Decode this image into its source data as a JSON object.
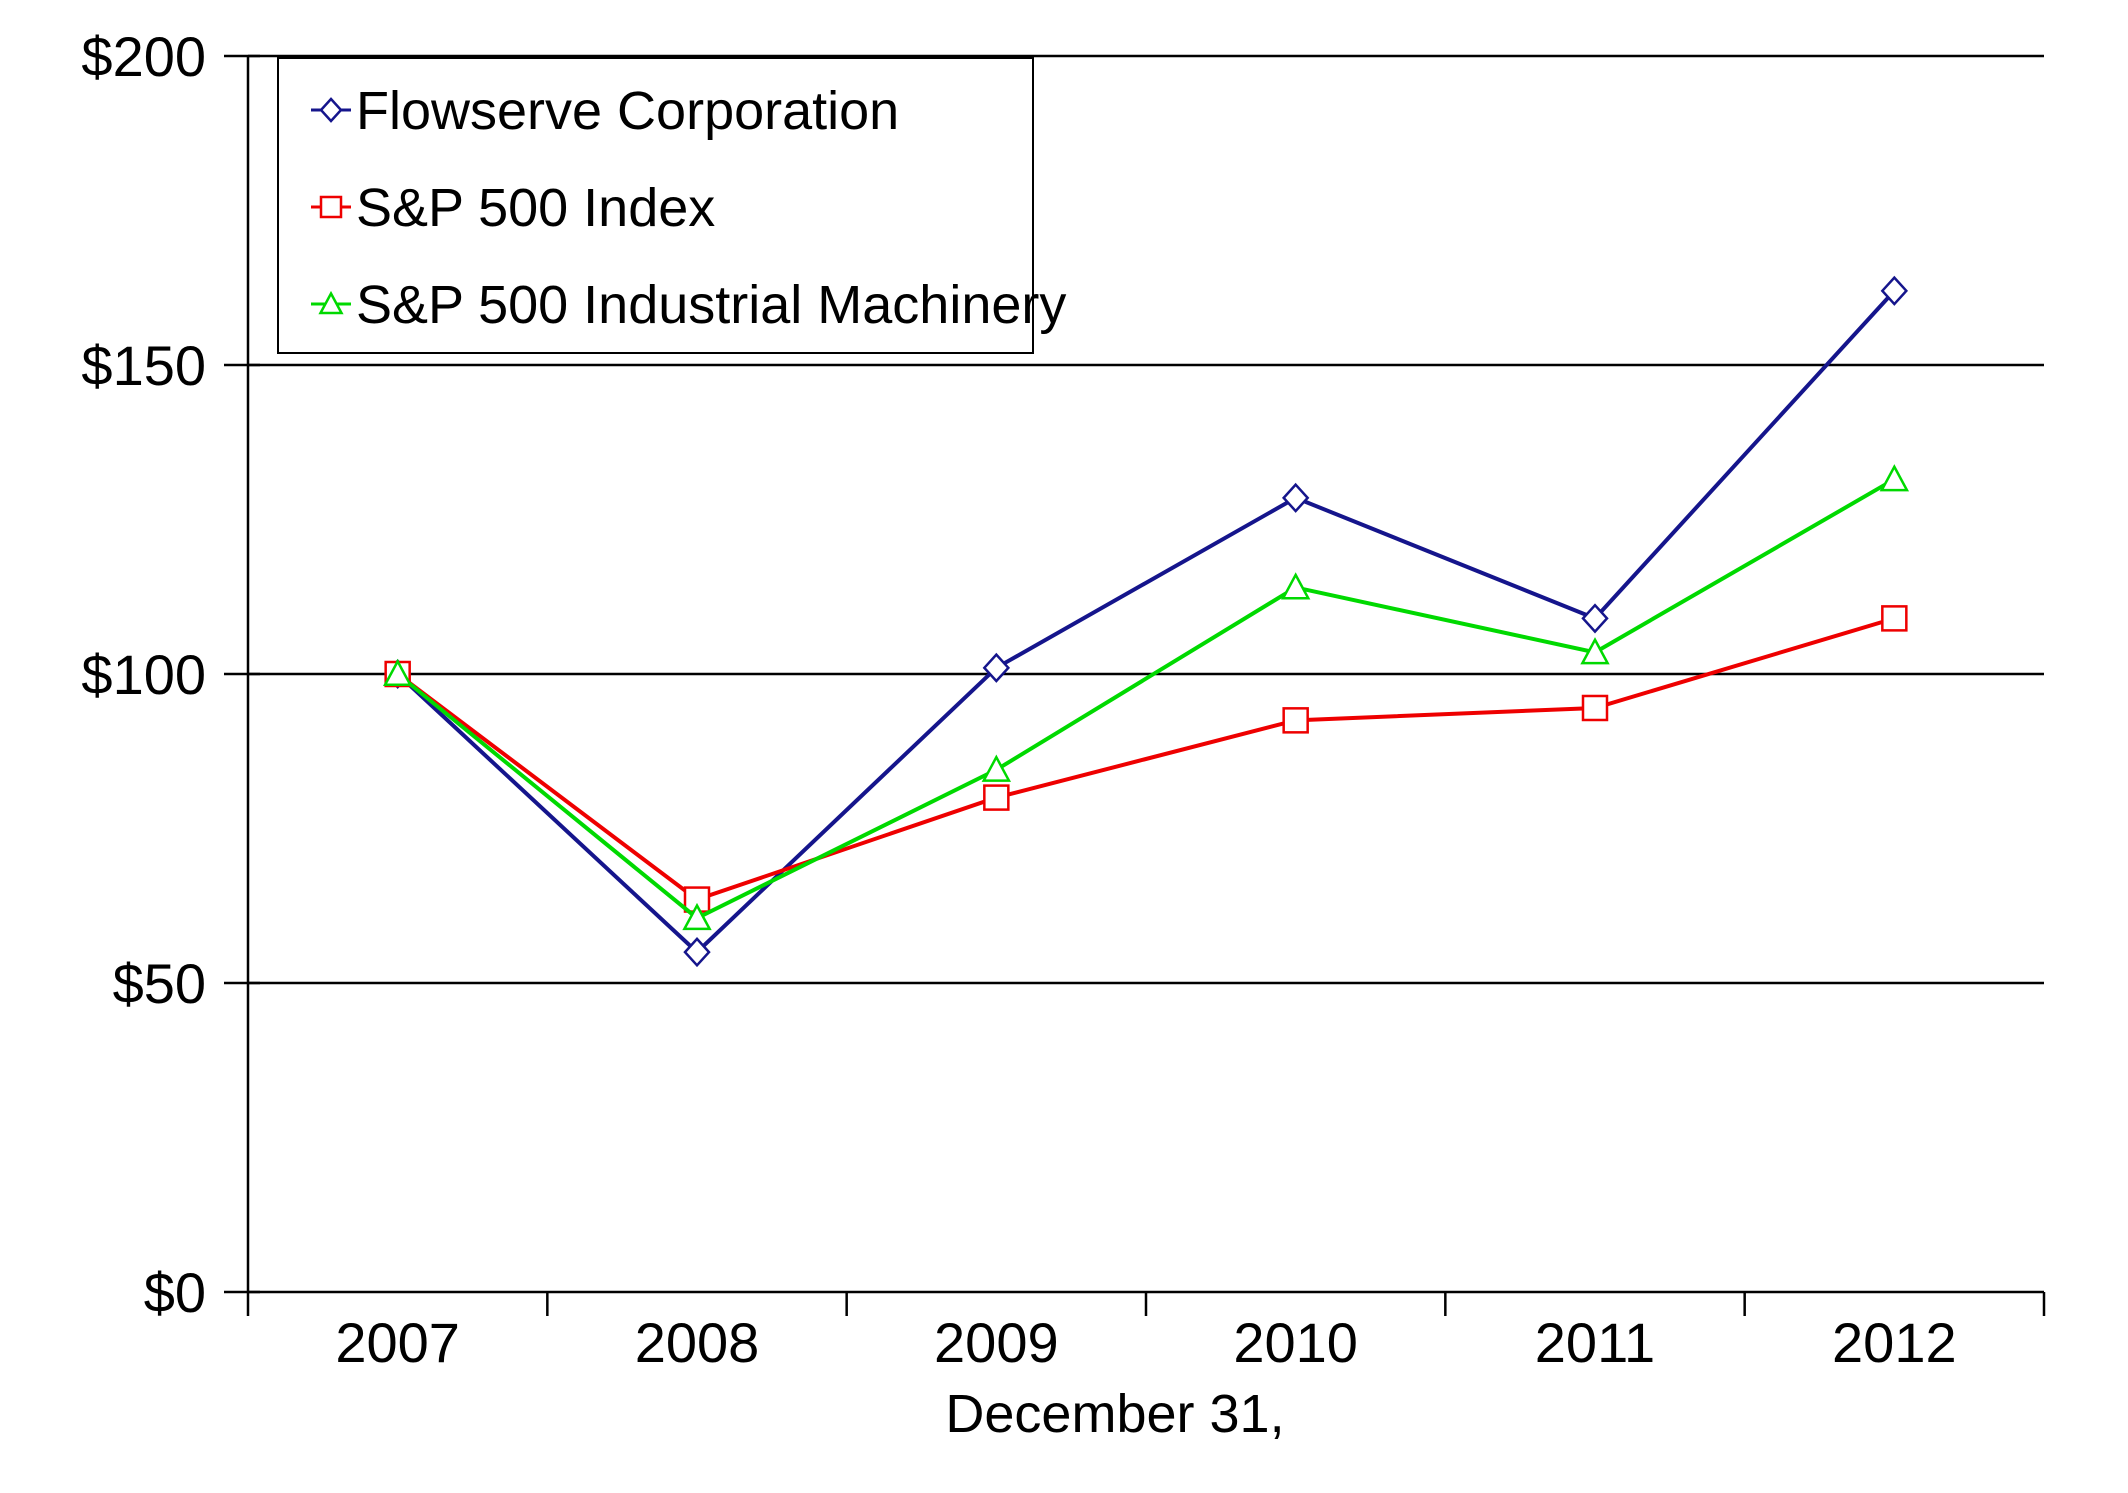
{
  "chart_data": {
    "type": "line",
    "title": "",
    "xlabel": "December 31,",
    "ylabel": "",
    "x_categories": [
      "2007",
      "2008",
      "2009",
      "2010",
      "2011",
      "2012"
    ],
    "y_ticks": [
      {
        "value": 0,
        "label": "$0"
      },
      {
        "value": 50,
        "label": "$50"
      },
      {
        "value": 100,
        "label": "$100"
      },
      {
        "value": 150,
        "label": "$150"
      },
      {
        "value": 200,
        "label": "$200"
      }
    ],
    "ylim": [
      0,
      200
    ],
    "grid": "horizontal",
    "legend_position": "top-left-box",
    "axis_color": "#000000",
    "background_color": "#ffffff",
    "series": [
      {
        "name": "Flowserve Corporation",
        "color": "#15158C",
        "marker": "diamond",
        "values": [
          100,
          55,
          101,
          128.5,
          109,
          162
        ]
      },
      {
        "name": "S&P 500 Index",
        "color": "#EE0000",
        "marker": "square",
        "values": [
          100,
          63.5,
          80,
          92.5,
          94.5,
          109
        ]
      },
      {
        "name": "S&P 500 Industrial Machinery",
        "color": "#00D900",
        "marker": "triangle",
        "values": [
          100,
          60.5,
          84.5,
          114,
          103.5,
          131.5
        ]
      }
    ]
  }
}
